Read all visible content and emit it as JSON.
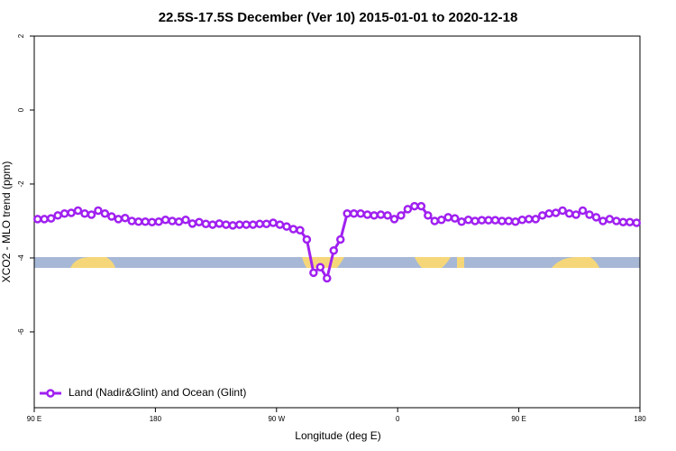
{
  "chart_data": {
    "type": "line",
    "title": "22.5S-17.5S December (Ver 10)   2015-01-01 to 2020-12-18",
    "xlabel": "Longitude (deg E)",
    "ylabel": "XCO2 - MLO trend (ppm)",
    "xlim": [
      90,
      540
    ],
    "ylim": [
      -8.05,
      2
    ],
    "xticks": [
      {
        "value": 90,
        "label": "90 E"
      },
      {
        "value": 180,
        "label": "180"
      },
      {
        "value": 270,
        "label": "90 W"
      },
      {
        "value": 360,
        "label": "0"
      },
      {
        "value": 450,
        "label": "90 E"
      },
      {
        "value": 540,
        "label": "180"
      }
    ],
    "yticks": [
      2,
      0,
      -2,
      -4,
      -6
    ],
    "legend": "bottom-left",
    "x": [
      92.5,
      97.5,
      102.5,
      107.5,
      112.5,
      117.5,
      122.5,
      127.5,
      132.5,
      137.5,
      142.5,
      147.5,
      152.5,
      157.5,
      162.5,
      167.5,
      172.5,
      177.5,
      182.5,
      187.5,
      192.5,
      197.5,
      202.5,
      207.5,
      212.5,
      217.5,
      222.5,
      227.5,
      232.5,
      237.5,
      242.5,
      247.5,
      252.5,
      257.5,
      262.5,
      267.5,
      272.5,
      277.5,
      282.5,
      287.5,
      292.5,
      297.5,
      302.5,
      307.5,
      312.5,
      317.5,
      322.5,
      327.5,
      332.5,
      337.5,
      342.5,
      347.5,
      352.5,
      357.5,
      362.5,
      367.5,
      372.5,
      377.5,
      382.5,
      387.5,
      392.5,
      397.5,
      402.5,
      407.5,
      412.5,
      417.5,
      422.5,
      427.5,
      432.5,
      437.5,
      442.5,
      447.5,
      452.5,
      457.5,
      462.5,
      467.5,
      472.5,
      477.5,
      482.5,
      487.5,
      492.5,
      497.5,
      502.5,
      507.5,
      512.5,
      517.5,
      522.5,
      527.5,
      532.5,
      537.5
    ],
    "series": [
      {
        "name": "Land (Nadir&Glint) and Ocean (Glint)",
        "color": "#a020f0",
        "values": [
          -2.95,
          -2.95,
          -2.93,
          -2.85,
          -2.8,
          -2.78,
          -2.72,
          -2.8,
          -2.83,
          -2.72,
          -2.8,
          -2.88,
          -2.95,
          -2.92,
          -3.0,
          -3.02,
          -3.02,
          -3.03,
          -3.02,
          -2.97,
          -3.0,
          -3.02,
          -2.97,
          -3.07,
          -3.03,
          -3.08,
          -3.1,
          -3.07,
          -3.1,
          -3.12,
          -3.1,
          -3.1,
          -3.1,
          -3.08,
          -3.08,
          -3.05,
          -3.1,
          -3.15,
          -3.22,
          -3.25,
          -3.5,
          -4.4,
          -4.25,
          -4.55,
          -3.8,
          -3.5,
          -2.8,
          -2.8,
          -2.8,
          -2.83,
          -2.85,
          -2.83,
          -2.85,
          -2.95,
          -2.85,
          -2.68,
          -2.6,
          -2.6,
          -2.85,
          -3.0,
          -2.97,
          -2.9,
          -2.93,
          -3.02,
          -2.97,
          -3.0,
          -2.98,
          -2.98,
          -2.98,
          -3.0,
          -3.0,
          -3.02,
          -2.97,
          -2.95,
          -2.95,
          -2.85,
          -2.8,
          -2.78,
          -2.72,
          -2.8,
          -2.83,
          -2.72,
          -2.83,
          -2.9,
          -3.0,
          -2.95,
          -3.0,
          -3.03,
          -3.03,
          -3.05
        ]
      }
    ]
  }
}
